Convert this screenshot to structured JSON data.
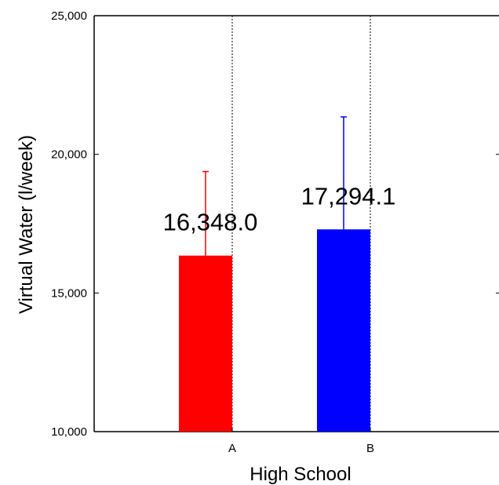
{
  "chart_data": {
    "type": "bar",
    "title": "",
    "xlabel": "High School",
    "ylabel": "Virtual Water (l/week)",
    "categories": [
      "A",
      "B"
    ],
    "values": [
      16348.0,
      17294.1
    ],
    "error_upper": [
      19380,
      21350
    ],
    "data_labels": [
      "16,348.0",
      "17,294.1"
    ],
    "bar_colors": [
      "#ff0000",
      "#0000ff"
    ],
    "ylim": [
      10000,
      25000
    ],
    "yticks": [
      10000,
      15000,
      20000,
      25000
    ],
    "ytick_labels": [
      "10,000",
      "15,000",
      "20,000",
      "25,000"
    ],
    "grid": false,
    "category_separators": "dotted vertical lines"
  }
}
